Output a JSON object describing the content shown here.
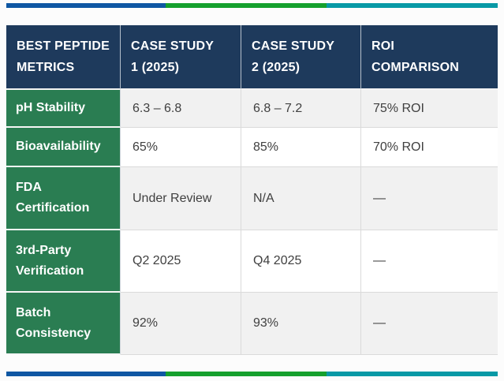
{
  "colors": {
    "header_bg": "#1e3a5c",
    "metric_col_bg": "#2a7d52",
    "row_alt_bg": "#f1f1f1",
    "bar_blue": "#0f57a3",
    "bar_green": "#15a02d",
    "bar_teal": "#0899a6",
    "body_text": "#404040"
  },
  "header": [
    {
      "line1": "BEST PEPTIDE",
      "line2": "METRICS"
    },
    {
      "line1": "CASE STUDY",
      "line2": "1 (2025)"
    },
    {
      "line1": "CASE STUDY",
      "line2": "2 (2025)"
    },
    {
      "line1": "ROI",
      "line2": "COMPARISON"
    }
  ],
  "chart_data": {
    "type": "table",
    "title": "",
    "columns": [
      "BEST PEPTIDE METRICS",
      "CASE STUDY 1 (2025)",
      "CASE STUDY 2 (2025)",
      "ROI COMPARISON"
    ],
    "rows": [
      [
        "pH Stability",
        "6.3 – 6.8",
        "6.8 – 7.2",
        "75% ROI"
      ],
      [
        "Bioavailability",
        "65%",
        "85%",
        "70% ROI"
      ],
      [
        "FDA Certification",
        "Under Review",
        "N/A",
        "—"
      ],
      [
        "3rd-Party Verification",
        "Q2 2025",
        "Q4 2025",
        "—"
      ],
      [
        "Batch Consistency",
        "92%",
        "93%",
        "—"
      ]
    ],
    "layout_hints": {
      "first_column_style": "green metric labels, white bold text",
      "header_style": "navy background, white bold uppercase text",
      "row_striping": "odd rows light gray, even rows white",
      "accent_bars": "blue/green/teal segmented bars above and below table"
    }
  }
}
